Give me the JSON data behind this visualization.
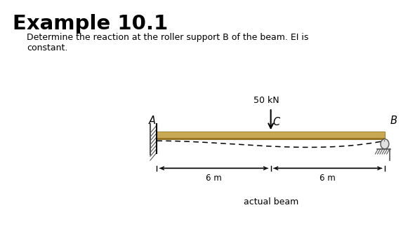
{
  "title": "Example 10.1",
  "subtitle_line1": "Determine the reaction at the roller support B of the beam. EI is",
  "subtitle_line2": "constant.",
  "bg_color": "#ffffff",
  "beam_fill": "#c8a855",
  "beam_top_highlight": "#ddb95a",
  "beam_bot_shadow": "#9a7220",
  "label_A": "A",
  "label_B": "B",
  "label_C": "C",
  "force_label": "50 kN",
  "dim_left": "6 m",
  "dim_right": "6 m",
  "caption": "actual beam"
}
